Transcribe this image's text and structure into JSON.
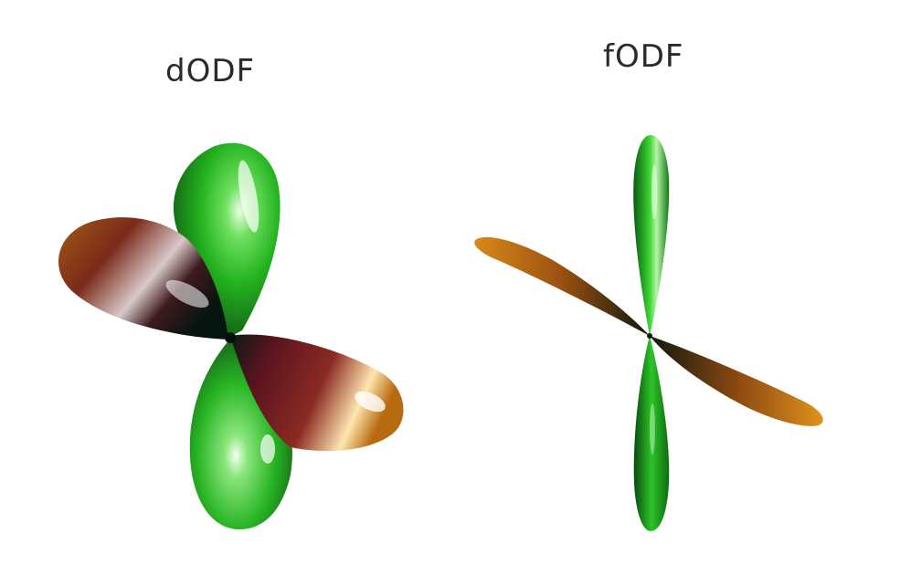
{
  "figure": {
    "left_panel": {
      "title": "dODF"
    },
    "right_panel": {
      "title": "fODF"
    },
    "colors": {
      "background": "#ffffff",
      "green_lobe": "#23b21e",
      "green_dark": "#0d5a10",
      "orange_lobe": "#c97a12",
      "red_lobe": "#7a1a22",
      "center_dark": "#0a1a14"
    }
  }
}
